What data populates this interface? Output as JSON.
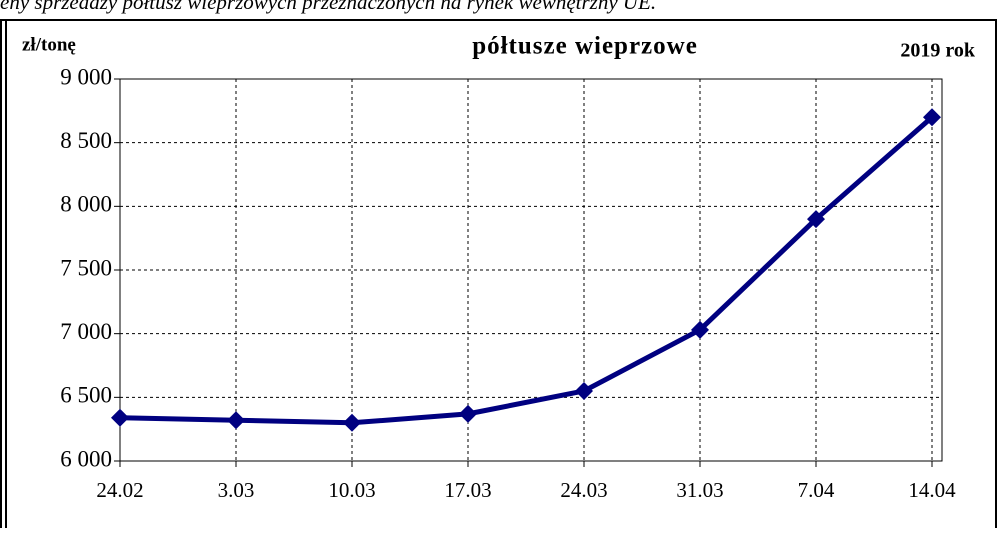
{
  "caption": "eny sprzedaży półtusz wieprzowych przeznaczonych na rynek wewnętrzny UE.",
  "chart_data": {
    "type": "line",
    "title": "półtusze wieprzowe",
    "y_label": "zł/tonę",
    "annotation": "2019 rok",
    "categories": [
      "24.02",
      "3.03",
      "10.03",
      "17.03",
      "24.03",
      "31.03",
      "7.04",
      "14.04"
    ],
    "series": [
      {
        "color": "#000080",
        "values": [
          6340,
          6320,
          6300,
          6370,
          6550,
          7030,
          7900,
          8700
        ]
      }
    ],
    "ylim": [
      6000,
      9000
    ],
    "yticks": [
      {
        "value": 6000,
        "label": "6 000"
      },
      {
        "value": 6500,
        "label": "6 500"
      },
      {
        "value": 7000,
        "label": "7 000"
      },
      {
        "value": 7500,
        "label": "7 500"
      },
      {
        "value": 8000,
        "label": "8 000"
      },
      {
        "value": 8500,
        "label": "8 500"
      },
      {
        "value": 9000,
        "label": "9 000"
      }
    ],
    "grid": true
  }
}
